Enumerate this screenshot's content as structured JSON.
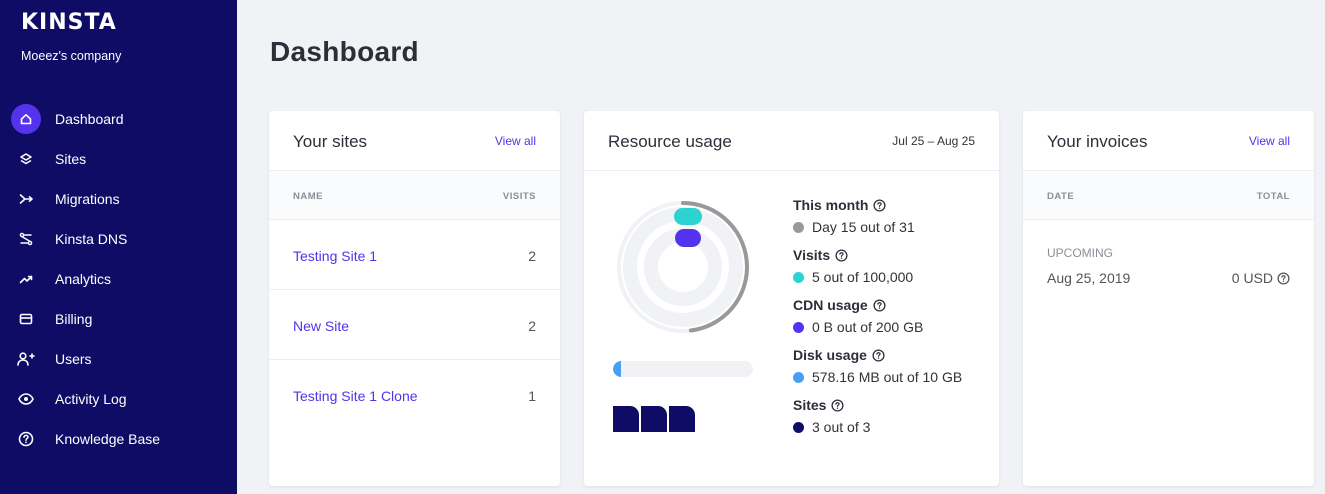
{
  "sidebar": {
    "logo": "KINSTA",
    "company": "Moeez's company",
    "items": [
      {
        "label": "Dashboard",
        "icon": "home-icon"
      },
      {
        "label": "Sites",
        "icon": "layers-icon"
      },
      {
        "label": "Migrations",
        "icon": "migrate-icon"
      },
      {
        "label": "Kinsta DNS",
        "icon": "dns-icon"
      },
      {
        "label": "Analytics",
        "icon": "trend-icon"
      },
      {
        "label": "Billing",
        "icon": "card-icon"
      },
      {
        "label": "Users",
        "icon": "add-user-icon"
      },
      {
        "label": "Activity Log",
        "icon": "eye-icon"
      },
      {
        "label": "Knowledge Base",
        "icon": "question-icon"
      }
    ]
  },
  "page": {
    "title": "Dashboard"
  },
  "sites_card": {
    "title": "Your sites",
    "view_all": "View all",
    "col_name": "NAME",
    "col_visits": "VISITS",
    "rows": [
      {
        "name": "Testing Site 1",
        "visits": "2"
      },
      {
        "name": "New Site",
        "visits": "2"
      },
      {
        "name": "Testing Site 1 Clone",
        "visits": "1"
      }
    ]
  },
  "usage_card": {
    "title": "Resource usage",
    "range": "Jul 25 – Aug 25",
    "stats": [
      {
        "title": "This month",
        "value": "Day 15 out of 31",
        "color": "#999999"
      },
      {
        "title": "Visits",
        "value": "5 out of 100,000",
        "color": "#2bd4d0"
      },
      {
        "title": "CDN usage",
        "value": "0 B out of 200 GB",
        "color": "#5333ed"
      },
      {
        "title": "Disk usage",
        "value": "578.16 MB out of 10 GB",
        "color": "#4a9ff5"
      },
      {
        "title": "Sites",
        "value": "3 out of 3",
        "color": "#0f0c66"
      }
    ],
    "month_progress": 0.48,
    "disk_progress": 0.06,
    "sites_used": 3
  },
  "invoices_card": {
    "title": "Your invoices",
    "view_all": "View all",
    "col_date": "DATE",
    "col_total": "TOTAL",
    "upcoming_label": "UPCOMING",
    "date": "Aug 25, 2019",
    "total": "0 USD"
  },
  "colors": {
    "sidebar": "#0f0c66",
    "accent": "#5333ed"
  }
}
